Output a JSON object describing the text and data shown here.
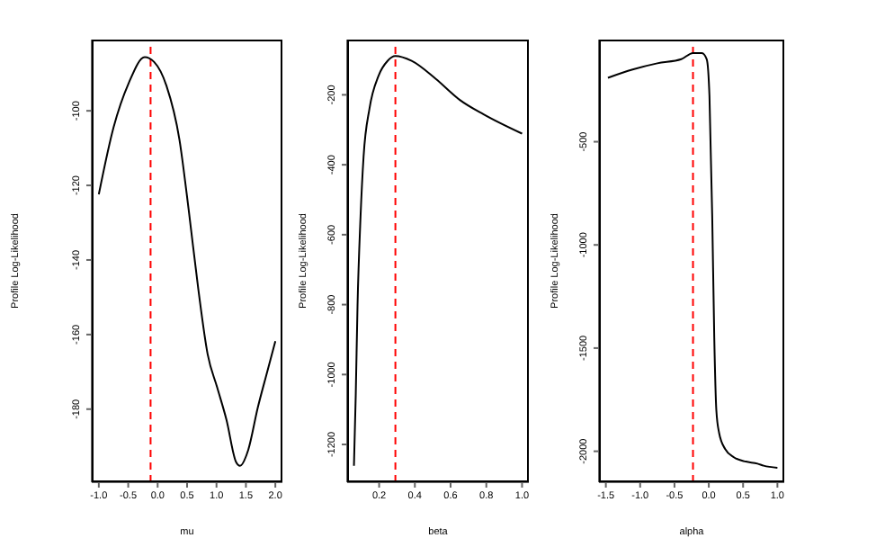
{
  "chart_data": [
    {
      "type": "line",
      "xlabel": "mu",
      "ylabel": "Profile Log-Likelihood",
      "xlim": [
        -1.12,
        2.12
      ],
      "xticks": [
        {
          "value": -1,
          "label": "-1.0"
        },
        -0.5,
        {
          "value": 0,
          "label": "0.0"
        },
        0.5,
        {
          "value": 1,
          "label": "1.0"
        },
        1.5,
        {
          "value": 2,
          "label": "2.0"
        }
      ],
      "ylim": [
        -199.6,
        -80.9
      ],
      "yticks": [
        -100,
        -120,
        -140,
        -160,
        -180
      ],
      "grid": false,
      "legend": false,
      "marker": "none",
      "line_style": "solid",
      "series": [
        {
          "color": "#000000",
          "x": [
            -1.0,
            -0.75,
            -0.49,
            -0.22,
            -0.06,
            0.15,
            0.37,
            0.53,
            0.69,
            0.85,
            1.01,
            1.17,
            1.33,
            1.4,
            1.54,
            1.7,
            1.86,
            2.0
          ],
          "values": [
            -122.4,
            -104.5,
            -92.5,
            -85.6,
            -86.9,
            -93.3,
            -107.7,
            -126.9,
            -147.7,
            -165.3,
            -174.1,
            -182.9,
            -194.1,
            -195.2,
            -190.9,
            -179.7,
            -170.1,
            -161.8
          ]
        }
      ],
      "ref_lines": [
        {
          "axis": "x",
          "value": -0.12,
          "color": "#ff0000",
          "line_style": "dashed"
        }
      ]
    },
    {
      "type": "line",
      "xlabel": "beta",
      "ylabel": "Profile Log-Likelihood",
      "xlim": [
        0.021,
        1.038
      ],
      "xticks": [
        0.2,
        0.4,
        0.6,
        0.8,
        {
          "value": 1,
          "label": "1.0"
        }
      ],
      "ylim": [
        -1308,
        -42
      ],
      "yticks": [
        -200,
        -400,
        -600,
        -800,
        -1000,
        -1200
      ],
      "grid": false,
      "legend": false,
      "marker": "none",
      "line_style": "solid",
      "series": [
        {
          "color": "#000000",
          "x": [
            0.059,
            0.069,
            0.079,
            0.096,
            0.113,
            0.146,
            0.197,
            0.247,
            0.291,
            0.382,
            0.516,
            0.65,
            0.785,
            1.0
          ],
          "values": [
            -1261,
            -1060,
            -803,
            -547,
            -376,
            -239,
            -145,
            -103,
            -89,
            -103,
            -154,
            -214,
            -256,
            -311
          ]
        }
      ],
      "ref_lines": [
        {
          "axis": "x",
          "value": 0.291,
          "color": "#ff0000",
          "line_style": "dashed"
        }
      ]
    },
    {
      "type": "line",
      "xlabel": "alpha",
      "ylabel": "Profile Log-Likelihood",
      "xlim": [
        -1.6,
        1.1
      ],
      "xticks": [
        -1.5,
        {
          "value": -1,
          "label": "-1.0"
        },
        -0.5,
        {
          "value": 0,
          "label": "0.0"
        },
        0.5,
        {
          "value": 1,
          "label": "1.0"
        }
      ],
      "ylim": [
        -2150,
        -5
      ],
      "yticks": [
        -500,
        -1000,
        -1500,
        -2000
      ],
      "grid": false,
      "legend": false,
      "marker": "none",
      "line_style": "solid",
      "series": [
        {
          "color": "#000000",
          "x": [
            -1.47,
            -1.11,
            -0.75,
            -0.4,
            -0.23,
            -0.1,
            -0.03,
            0.01,
            0.05,
            0.08,
            0.11,
            0.15,
            0.24,
            0.37,
            0.54,
            0.71,
            0.8,
            1.0
          ],
          "values": [
            -190,
            -150,
            -120,
            -100,
            -70,
            -70,
            -100,
            -280,
            -860,
            -1450,
            -1800,
            -1910,
            -1990,
            -2030,
            -2050,
            -2060,
            -2070,
            -2080
          ]
        }
      ],
      "ref_lines": [
        {
          "axis": "x",
          "value": -0.23,
          "color": "#ff0000",
          "line_style": "dashed"
        }
      ]
    }
  ]
}
